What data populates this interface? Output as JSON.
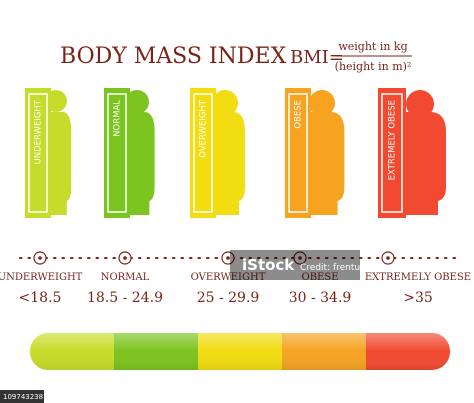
{
  "header": {
    "title": "BODY MASS INDEX",
    "formula_lhs": "BMI=",
    "numerator": "weight in kg",
    "denominator": "(height in m)²"
  },
  "categories": [
    {
      "bar_label": "UNDERWEIGHT",
      "label": "UNDERWEIGHT",
      "range": "<18.5",
      "color": "#c6dc2a"
    },
    {
      "bar_label": "NORMAL",
      "label": "NORMAL",
      "range": "18.5 - 24.9",
      "color": "#7cc41f"
    },
    {
      "bar_label": "OVERWEIGHT",
      "label": "OVERWEIGHT",
      "range": "25 - 29.9",
      "color": "#f2dc12"
    },
    {
      "bar_label": "OBESE",
      "label": "OBESE",
      "range": "30 - 34.9",
      "color": "#f6a322"
    },
    {
      "bar_label": "EXTREMELY OBESE",
      "label": "EXTREMELY OBESE",
      "range": ">35",
      "color": "#f14a31"
    }
  ],
  "watermark": {
    "brand": "iStock",
    "credit": "Credit: frentusha",
    "id": "1097432381"
  }
}
